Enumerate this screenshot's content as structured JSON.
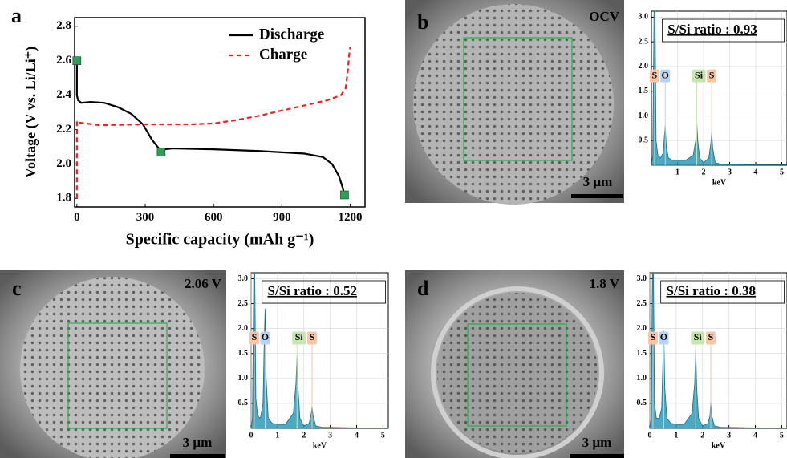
{
  "chart_data": [
    {
      "type": "line",
      "panel_label": "a",
      "xlabel": "Specific capacity (mAh g⁻¹)",
      "ylabel": "Voltage (V vs. Li/Li⁺)",
      "xlim": [
        -10,
        1265
      ],
      "ylim": [
        1.75,
        2.85
      ],
      "xticks": [
        0,
        300,
        600,
        900,
        1200
      ],
      "yticks": [
        1.8,
        {
          "value": 2,
          "label": "2.0"
        },
        2.2,
        2.4,
        2.6,
        2.8
      ],
      "legend": "upper right",
      "series": [
        {
          "name": "Discharge",
          "color": "#000000",
          "dash": "solid",
          "x": [
            0,
            0,
            5,
            20,
            60,
            120,
            180,
            240,
            290,
            330,
            360,
            370,
            385,
            420,
            600,
            800,
            1000,
            1080,
            1120,
            1150,
            1165,
            1175
          ],
          "values": [
            2.6,
            2.4,
            2.37,
            2.355,
            2.36,
            2.355,
            2.33,
            2.29,
            2.23,
            2.14,
            2.09,
            2.07,
            2.085,
            2.09,
            2.085,
            2.075,
            2.06,
            2.04,
            2.0,
            1.93,
            1.87,
            1.82
          ]
        },
        {
          "name": "Charge",
          "color": "#ee2222",
          "dash": "dashed",
          "x": [
            0,
            0,
            10,
            40,
            100,
            300,
            500,
            600,
            700,
            800,
            900,
            1000,
            1100,
            1160,
            1180,
            1190,
            1195,
            1200
          ],
          "values": [
            1.8,
            2.25,
            2.24,
            2.235,
            2.225,
            2.23,
            2.23,
            2.235,
            2.255,
            2.28,
            2.31,
            2.34,
            2.37,
            2.4,
            2.44,
            2.55,
            2.63,
            2.68
          ]
        }
      ],
      "points": {
        "color": "#2e9e5a",
        "x": [
          0,
          370,
          1175
        ],
        "values": [
          2.6,
          2.07,
          1.82
        ]
      }
    },
    {
      "type": "area",
      "title": "S/Si ratio : 0.93",
      "xlabel": "keV",
      "color": "#2a9ab8",
      "grid": true,
      "xlim": [
        0,
        5.2
      ],
      "ylim": [
        0,
        3.12
      ],
      "xticks": [
        1,
        2,
        3,
        4,
        5
      ],
      "yticks": [
        0.5,
        {
          "value": 1,
          "label": "1.0"
        },
        1.5,
        {
          "value": 2,
          "label": "2.0"
        },
        2.5,
        {
          "value": 3,
          "label": "3.0"
        }
      ],
      "x": [
        0,
        0.05,
        0.1,
        0.14,
        0.18,
        0.25,
        0.35,
        0.45,
        0.5,
        0.53,
        0.57,
        0.65,
        0.8,
        1.0,
        1.3,
        1.6,
        1.7,
        1.74,
        1.78,
        1.85,
        2.0,
        2.2,
        2.28,
        2.31,
        2.35,
        2.45,
        2.7,
        3.0,
        4.0,
        5.0,
        5.2
      ],
      "values": [
        0,
        0.2,
        3.1,
        3.1,
        0.5,
        0.2,
        0.15,
        0.25,
        0.6,
        0.8,
        0.4,
        0.15,
        0.1,
        0.1,
        0.1,
        0.2,
        0.5,
        0.85,
        0.5,
        0.15,
        0.05,
        0.15,
        0.45,
        0.7,
        0.35,
        0.05,
        0.02,
        0.02,
        0.01,
        0.01,
        0.01
      ],
      "peaks": [
        {
          "label": "S",
          "x": 0.12,
          "color": "#f5c6a8"
        },
        {
          "label": "O",
          "x": 0.53,
          "color": "#b8d4f0"
        },
        {
          "label": "Si",
          "x": 1.74,
          "color": "#c8e6b0"
        },
        {
          "label": "S",
          "x": 2.31,
          "color": "#f5c6a8"
        }
      ]
    },
    {
      "type": "area",
      "title": "S/Si ratio : 0.52",
      "xlabel": "keV",
      "color": "#2a9ab8",
      "grid": true,
      "xlim": [
        0,
        5.2
      ],
      "ylim": [
        0,
        3.12
      ],
      "xticks": [
        0,
        1,
        2,
        3,
        4,
        5
      ],
      "yticks": [
        0.5,
        {
          "value": 1,
          "label": "1.0"
        },
        1.5,
        {
          "value": 2,
          "label": "2.0"
        },
        2.5,
        {
          "value": 3,
          "label": "3.0"
        }
      ],
      "x": [
        0,
        0.05,
        0.1,
        0.14,
        0.18,
        0.25,
        0.35,
        0.45,
        0.5,
        0.53,
        0.57,
        0.65,
        0.8,
        1.0,
        1.3,
        1.6,
        1.7,
        1.74,
        1.78,
        1.85,
        2.0,
        2.2,
        2.28,
        2.31,
        2.35,
        2.45,
        2.7,
        3.0,
        4.0,
        5.0,
        5.2
      ],
      "values": [
        0,
        0.2,
        3.1,
        3.1,
        0.6,
        0.25,
        0.2,
        0.5,
        1.8,
        2.4,
        1.0,
        0.2,
        0.1,
        0.08,
        0.08,
        0.3,
        0.9,
        1.45,
        0.8,
        0.2,
        0.05,
        0.1,
        0.3,
        0.45,
        0.25,
        0.05,
        0.02,
        0.02,
        0.01,
        0.01,
        0.01
      ],
      "peaks": [
        {
          "label": "S",
          "x": 0.12,
          "color": "#f5c6a8"
        },
        {
          "label": "O",
          "x": 0.53,
          "color": "#b8d4f0"
        },
        {
          "label": "Si",
          "x": 1.74,
          "color": "#c8e6b0"
        },
        {
          "label": "S",
          "x": 2.31,
          "color": "#f5c6a8"
        }
      ]
    },
    {
      "type": "area",
      "title": "S/Si ratio : 0.38",
      "xlabel": "keV",
      "color": "#2a9ab8",
      "grid": true,
      "xlim": [
        0,
        5.2
      ],
      "ylim": [
        0,
        3.12
      ],
      "xticks": [
        0,
        1,
        2,
        3,
        4,
        5
      ],
      "yticks": [
        0.5,
        {
          "value": 1,
          "label": "1.0"
        },
        1.5,
        {
          "value": 2,
          "label": "2.0"
        },
        2.5,
        {
          "value": 3,
          "label": "3.0"
        }
      ],
      "x": [
        0,
        0.05,
        0.1,
        0.14,
        0.18,
        0.25,
        0.35,
        0.45,
        0.5,
        0.53,
        0.57,
        0.65,
        0.8,
        1.0,
        1.3,
        1.6,
        1.7,
        1.74,
        1.78,
        1.85,
        2.0,
        2.2,
        2.28,
        2.31,
        2.35,
        2.45,
        2.7,
        3.0,
        4.0,
        5.0,
        5.2
      ],
      "values": [
        0,
        0.2,
        3.1,
        3.1,
        0.5,
        0.2,
        0.2,
        0.4,
        1.4,
        1.95,
        0.8,
        0.2,
        0.1,
        0.08,
        0.08,
        0.3,
        0.9,
        1.6,
        0.8,
        0.2,
        0.05,
        0.1,
        0.25,
        0.55,
        0.25,
        0.05,
        0.02,
        0.02,
        0.01,
        0.01,
        0.01
      ],
      "peaks": [
        {
          "label": "S",
          "x": 0.12,
          "color": "#f5c6a8"
        },
        {
          "label": "O",
          "x": 0.53,
          "color": "#b8d4f0"
        },
        {
          "label": "Si",
          "x": 1.74,
          "color": "#c8e6b0"
        },
        {
          "label": "S",
          "x": 2.31,
          "color": "#f5c6a8"
        }
      ]
    }
  ],
  "images": [
    {
      "panel_label": "b",
      "condition": "OCV",
      "scale_bar": "3 µm"
    },
    {
      "panel_label": "c",
      "condition": "2.06 V",
      "scale_bar": "3 µm"
    },
    {
      "panel_label": "d",
      "condition": "1.8 V",
      "scale_bar": "3 µm"
    }
  ]
}
